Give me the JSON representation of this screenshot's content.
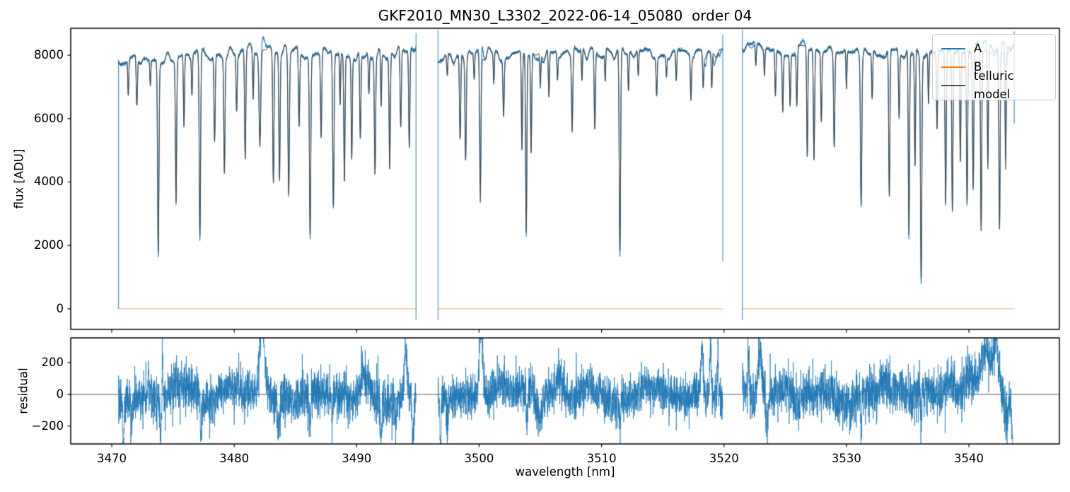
{
  "chart_data": {
    "type": "line",
    "title": "GKF2010_MN30_L3302_2022-06-14_05080  order 04",
    "xlabel": "wavelength [nm]",
    "ylabel_top": "flux [ADU]",
    "ylabel_bottom": "residual",
    "grid": false,
    "xlim": [
      3466.65,
      3547.39
    ],
    "ylim_top": [
      -650,
      8850
    ],
    "ylim_bottom": [
      -313,
      357
    ],
    "x_ticks": [
      3470,
      3480,
      3490,
      3500,
      3510,
      3520,
      3530,
      3540
    ],
    "y_ticks_top": [
      0,
      2000,
      4000,
      6000,
      8000
    ],
    "y_ticks_bottom": [
      -200,
      0,
      200
    ],
    "legend": {
      "position": "upper right",
      "items": [
        {
          "label": "A",
          "color": "#1f77b4"
        },
        {
          "label": "B",
          "color": "#ff7f0e"
        },
        {
          "label": "telluric model",
          "color": "#4d4d4d"
        }
      ]
    },
    "styles": {
      "a_color": "#1f77b4",
      "a_alpha": 0.95,
      "a_linewidth": 1.1,
      "b_color": "#ff7f0e",
      "b_alpha": 0.38,
      "b_linewidth": 1.7,
      "b_value": 0,
      "model_color": "#454545",
      "model_alpha": 0.93,
      "model_linewidth": 1.1,
      "residual_color": "#1f77b4",
      "residual_linewidth": 0.8,
      "axhline_color": "#404040",
      "spine_color": "#000000",
      "background": "#ffffff"
    },
    "seed": 20220614,
    "texture": {
      "amp": 0.05,
      "cell": 0.32
    },
    "a_noise_sigma": 28,
    "segments": [
      {
        "x_start": 3470.55,
        "x_end": 3494.85,
        "edge_start": [
          0,
          7870
        ],
        "edge_end": [
          -350,
          8700
        ],
        "continuum": [
          [
            3470.55,
            7850
          ],
          [
            3473.0,
            7880
          ],
          [
            3476.0,
            7950
          ],
          [
            3479.0,
            8060
          ],
          [
            3482.4,
            8230
          ],
          [
            3484.0,
            8120
          ],
          [
            3486.5,
            8080
          ],
          [
            3489.0,
            8000
          ],
          [
            3491.5,
            8020
          ],
          [
            3493.5,
            8080
          ],
          [
            3494.85,
            8330
          ]
        ],
        "lines": [
          [
            3471.35,
            0.14,
            0.04
          ],
          [
            3472.05,
            0.2,
            0.05
          ],
          [
            3473.15,
            0.1,
            0.04
          ],
          [
            3473.8,
            0.775,
            0.055
          ],
          [
            3475.25,
            0.57,
            0.05
          ],
          [
            3475.9,
            0.28,
            0.045
          ],
          [
            3476.55,
            0.15,
            0.04
          ],
          [
            3477.2,
            0.72,
            0.055
          ],
          [
            3478.4,
            0.34,
            0.05
          ],
          [
            3479.2,
            0.46,
            0.05
          ],
          [
            3480.2,
            0.22,
            0.045
          ],
          [
            3480.9,
            0.42,
            0.05
          ],
          [
            3481.55,
            0.18,
            0.04
          ],
          [
            3482.1,
            0.37,
            0.07
          ],
          [
            3483.2,
            0.51,
            0.05
          ],
          [
            3483.7,
            0.49,
            0.05
          ],
          [
            3484.45,
            0.55,
            0.055
          ],
          [
            3485.3,
            0.29,
            0.05
          ],
          [
            3486.2,
            0.705,
            0.055
          ],
          [
            3487.1,
            0.33,
            0.05
          ],
          [
            3488.1,
            0.6,
            0.055
          ],
          [
            3488.65,
            0.2,
            0.04
          ],
          [
            3489.0,
            0.5,
            0.05
          ],
          [
            3489.6,
            0.4,
            0.045
          ],
          [
            3490.3,
            0.34,
            0.05
          ],
          [
            3491.0,
            0.15,
            0.04
          ],
          [
            3491.5,
            0.46,
            0.05
          ],
          [
            3492.0,
            0.21,
            0.04
          ],
          [
            3492.7,
            0.45,
            0.05
          ],
          [
            3493.6,
            0.3,
            0.05
          ],
          [
            3494.3,
            0.38,
            0.05
          ]
        ]
      },
      {
        "x_start": 3496.65,
        "x_end": 3519.9,
        "edge_start": [
          -350,
          8800
        ],
        "edge_end": [
          1500,
          8650
        ],
        "continuum": [
          [
            3496.65,
            7900
          ],
          [
            3499.0,
            7950
          ],
          [
            3500.6,
            8050
          ],
          [
            3503.0,
            7980
          ],
          [
            3506.0,
            8020
          ],
          [
            3510.0,
            8050
          ],
          [
            3514.0,
            8060
          ],
          [
            3517.0,
            8050
          ],
          [
            3519.9,
            8080
          ]
        ],
        "lines": [
          [
            3497.4,
            0.08,
            0.04
          ],
          [
            3498.45,
            0.33,
            0.05
          ],
          [
            3498.9,
            0.4,
            0.05
          ],
          [
            3499.6,
            0.1,
            0.04
          ],
          [
            3500.1,
            0.575,
            0.055
          ],
          [
            3501.2,
            0.12,
            0.04
          ],
          [
            3502.0,
            0.23,
            0.05
          ],
          [
            3503.5,
            0.38,
            0.045
          ],
          [
            3503.85,
            0.7,
            0.05
          ],
          [
            3504.25,
            0.39,
            0.045
          ],
          [
            3505.0,
            0.12,
            0.04
          ],
          [
            3505.7,
            0.18,
            0.045
          ],
          [
            3506.4,
            0.1,
            0.04
          ],
          [
            3507.6,
            0.3,
            0.05
          ],
          [
            3508.4,
            0.12,
            0.04
          ],
          [
            3509.45,
            0.31,
            0.05
          ],
          [
            3510.3,
            0.12,
            0.04
          ],
          [
            3511.5,
            0.78,
            0.055
          ],
          [
            3512.2,
            0.15,
            0.04
          ],
          [
            3513.0,
            0.1,
            0.04
          ],
          [
            3514.5,
            0.15,
            0.045
          ],
          [
            3515.3,
            0.08,
            0.04
          ],
          [
            3516.1,
            0.12,
            0.045
          ],
          [
            3517.3,
            0.17,
            0.045
          ],
          [
            3518.3,
            0.12,
            0.04
          ],
          [
            3519.0,
            0.14,
            0.04
          ]
        ]
      },
      {
        "x_start": 3521.5,
        "x_end": 3543.7,
        "edge_start": [
          -350,
          8800
        ],
        "edge_end": [
          5850,
          8750
        ],
        "continuum": [
          [
            3521.5,
            8280
          ],
          [
            3523.5,
            8200
          ],
          [
            3526.0,
            8150
          ],
          [
            3529.0,
            8070
          ],
          [
            3532.0,
            8060
          ],
          [
            3535.0,
            8080
          ],
          [
            3538.0,
            8100
          ],
          [
            3541.0,
            8100
          ],
          [
            3543.7,
            8150
          ]
        ],
        "lines": [
          [
            3522.6,
            0.08,
            0.04
          ],
          [
            3523.3,
            0.1,
            0.04
          ],
          [
            3524.2,
            0.18,
            0.045
          ],
          [
            3524.8,
            0.22,
            0.045
          ],
          [
            3525.4,
            0.2,
            0.045
          ],
          [
            3525.95,
            0.22,
            0.045
          ],
          [
            3526.8,
            0.42,
            0.045
          ],
          [
            3527.35,
            0.43,
            0.05
          ],
          [
            3527.95,
            0.27,
            0.045
          ],
          [
            3529.0,
            0.37,
            0.05
          ],
          [
            3530.0,
            0.15,
            0.04
          ],
          [
            3531.2,
            0.585,
            0.055
          ],
          [
            3532.1,
            0.19,
            0.045
          ],
          [
            3533.5,
            0.565,
            0.05
          ],
          [
            3534.3,
            0.25,
            0.045
          ],
          [
            3535.1,
            0.715,
            0.05
          ],
          [
            3535.6,
            0.45,
            0.045
          ],
          [
            3536.1,
            0.88,
            0.055
          ],
          [
            3536.7,
            0.2,
            0.04
          ],
          [
            3537.4,
            0.3,
            0.045
          ],
          [
            3538.1,
            0.59,
            0.05
          ],
          [
            3538.65,
            0.62,
            0.05
          ],
          [
            3539.3,
            0.43,
            0.045
          ],
          [
            3539.85,
            0.59,
            0.05
          ],
          [
            3540.35,
            0.54,
            0.05
          ],
          [
            3541.0,
            0.7,
            0.05
          ],
          [
            3541.55,
            0.46,
            0.045
          ],
          [
            3542.5,
            0.69,
            0.05
          ],
          [
            3543.0,
            0.45,
            0.045
          ]
        ]
      }
    ],
    "a_bumps": [
      [
        3482.3,
        420,
        0.2
      ],
      [
        3494.95,
        350,
        0.07
      ],
      [
        3500.15,
        700,
        0.12
      ],
      [
        3522.3,
        140,
        0.2
      ],
      [
        3526.45,
        160,
        0.12
      ],
      [
        3541.3,
        300,
        0.55
      ],
      [
        3542.9,
        380,
        0.25
      ]
    ],
    "a_dips": [
      [
        3504.9,
        170,
        0.3
      ],
      [
        3518.5,
        260,
        0.08
      ],
      [
        3519.2,
        320,
        0.07
      ],
      [
        3519.65,
        220,
        0.06
      ]
    ],
    "residual": {
      "noise_sigma": [
        72,
        66,
        72
      ],
      "wander_amp": 55,
      "wander_cell": 1.2,
      "events": [
        [
          3470.95,
          -330,
          0.05
        ],
        [
          3471.6,
          -180,
          0.05
        ],
        [
          3473.0,
          240,
          0.03
        ],
        [
          3474.0,
          -210,
          0.05
        ],
        [
          3474.15,
          260,
          0.03
        ],
        [
          3476.0,
          60,
          0.8
        ],
        [
          3477.3,
          -220,
          0.05
        ],
        [
          3479.5,
          80,
          0.8
        ],
        [
          3482.28,
          450,
          0.18
        ],
        [
          3483.6,
          -160,
          0.07
        ],
        [
          3486.2,
          -260,
          0.05
        ],
        [
          3488.0,
          -210,
          0.05
        ],
        [
          3490.5,
          140,
          0.12
        ],
        [
          3492.0,
          -220,
          0.06
        ],
        [
          3493.2,
          -180,
          0.05
        ],
        [
          3494.0,
          300,
          0.1
        ],
        [
          3494.6,
          -330,
          0.07
        ],
        [
          3494.95,
          360,
          0.05
        ],
        [
          3496.85,
          -360,
          0.05
        ],
        [
          3497.4,
          -160,
          0.07
        ],
        [
          3500.15,
          500,
          0.13
        ],
        [
          3502.5,
          60,
          0.6
        ],
        [
          3503.9,
          -220,
          0.07
        ],
        [
          3504.9,
          -170,
          0.3
        ],
        [
          3506.5,
          110,
          0.25
        ],
        [
          3511.5,
          -160,
          0.05
        ],
        [
          3513.5,
          70,
          0.6
        ],
        [
          3518.2,
          290,
          0.09
        ],
        [
          3518.9,
          310,
          0.07
        ],
        [
          3519.5,
          260,
          0.06
        ],
        [
          3520.0,
          -280,
          0.05
        ],
        [
          3522.0,
          210,
          0.07
        ],
        [
          3522.95,
          340,
          0.16
        ],
        [
          3523.5,
          -160,
          0.09
        ],
        [
          3526.0,
          -110,
          0.25
        ],
        [
          3529.5,
          -70,
          0.35
        ],
        [
          3531.2,
          -160,
          0.05
        ],
        [
          3533.0,
          90,
          0.25
        ],
        [
          3536.1,
          -200,
          0.05
        ],
        [
          3538.5,
          110,
          0.35
        ],
        [
          3540.0,
          140,
          0.35
        ],
        [
          3541.35,
          340,
          0.4
        ],
        [
          3542.2,
          300,
          0.22
        ],
        [
          3543.05,
          -160,
          0.12
        ],
        [
          3543.65,
          -400,
          0.12
        ]
      ]
    }
  }
}
